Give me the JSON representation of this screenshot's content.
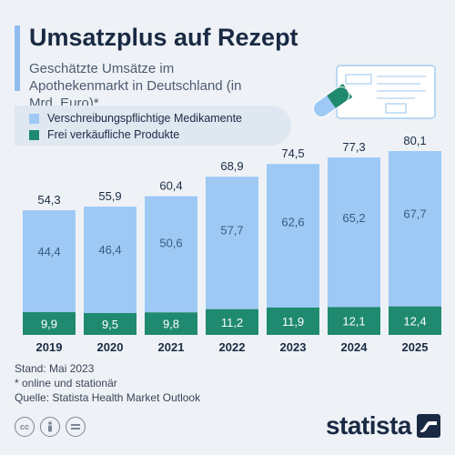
{
  "header": {
    "title": "Umsatzplus auf Rezept",
    "subtitle": "Geschätzte Umsätze im Apothekenmarkt in Deutschland (in Mrd. Euro)*"
  },
  "legend": {
    "items": [
      {
        "label": "Verschreibungspflichtige Medikamente",
        "color": "#9ec9f5"
      },
      {
        "label": "Frei verkäufliche Produkte",
        "color": "#1f8a6f"
      }
    ]
  },
  "chart_data": {
    "type": "bar",
    "stacked": true,
    "categories": [
      "2019",
      "2020",
      "2021",
      "2022",
      "2023",
      "2024",
      "2025"
    ],
    "series": [
      {
        "name": "Frei verkäufliche Produkte",
        "color": "#1f8a6f",
        "values": [
          9.9,
          9.5,
          9.8,
          11.2,
          11.9,
          12.1,
          12.4
        ]
      },
      {
        "name": "Verschreibungspflichtige Medikamente",
        "color": "#9ec9f5",
        "values": [
          44.4,
          46.4,
          50.6,
          57.7,
          62.6,
          65.2,
          67.7
        ]
      }
    ],
    "totals": [
      54.3,
      55.9,
      60.4,
      68.9,
      74.5,
      77.3,
      80.1
    ],
    "value_labels": {
      "totals": [
        "54,3",
        "55,9",
        "60,4",
        "68,9",
        "74,5",
        "77,3",
        "80,1"
      ],
      "series": [
        [
          "9,9",
          "9,5",
          "9,8",
          "11,2",
          "11,9",
          "12,1",
          "12,4"
        ],
        [
          "44,4",
          "46,4",
          "50,6",
          "57,7",
          "62,6",
          "65,2",
          "67,7"
        ]
      ]
    },
    "ylim": [
      0,
      80.1
    ],
    "grid": false
  },
  "footer": {
    "date": "Stand: Mai 2023",
    "note": "* online und stationär",
    "source": "Quelle: Statista Health Market Outlook"
  },
  "brand": {
    "name": "statista"
  },
  "icons": {
    "license": [
      "cc-icon",
      "attribution-icon",
      "noderivs-icon"
    ],
    "illustration": "prescription-pill-icon",
    "brand_mark": "statista-logo-icon"
  }
}
